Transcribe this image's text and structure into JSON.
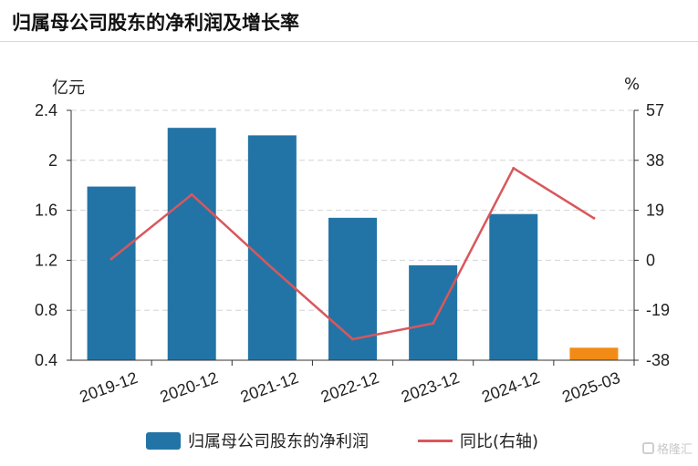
{
  "header": {
    "title": "归属母公司股东的净利润及增长率"
  },
  "axes": {
    "left_unit": "亿元",
    "right_unit": "%"
  },
  "legend": {
    "bar_label": "归属母公司股东的净利润",
    "line_label": "同比(右轴)"
  },
  "watermark": {
    "text": "格隆汇"
  },
  "chart_data": {
    "type": "bar",
    "categories": [
      "2019-12",
      "2020-12",
      "2021-12",
      "2022-12",
      "2023-12",
      "2024-12",
      "2025-03"
    ],
    "series": [
      {
        "name": "归属母公司股东的净利润",
        "type": "bar",
        "axis": "left",
        "values": [
          1.79,
          2.26,
          2.2,
          1.54,
          1.16,
          1.57,
          0.5
        ],
        "colors": [
          "#2374a6",
          "#2374a6",
          "#2374a6",
          "#2374a6",
          "#2374a6",
          "#2374a6",
          "#f28b16"
        ]
      },
      {
        "name": "同比(右轴)",
        "type": "line",
        "axis": "right",
        "values": [
          0.5,
          25.0,
          -3.0,
          -30.0,
          -24.0,
          35.0,
          16.0
        ],
        "color": "#d9575c"
      }
    ],
    "y_left": {
      "ylim": [
        0.4,
        2.4
      ],
      "ticks": [
        "0.4",
        "0.8",
        "1.2",
        "1.6",
        "2",
        "2.4"
      ]
    },
    "y_right": {
      "ylim": [
        -38,
        57
      ],
      "ticks": [
        "-38",
        "-19",
        "0",
        "19",
        "38",
        "57"
      ]
    },
    "grid": true,
    "legend_position": "bottom"
  }
}
